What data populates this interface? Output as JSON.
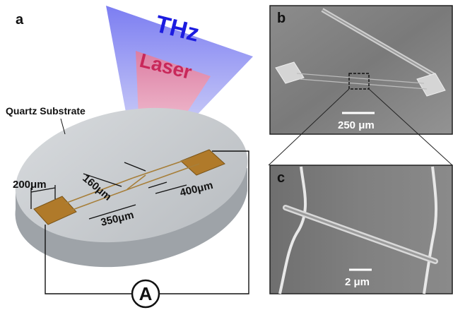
{
  "panels": {
    "a": {
      "letter": "a",
      "thz_label": "THz",
      "laser_label": "Laser",
      "substrate_label": "Quartz Substrate",
      "dim_pad_width": "200μm",
      "dim_gap": "160μm",
      "dim_length": "350μm",
      "dim_lead": "400μm",
      "ammeter_symbol": "A"
    },
    "b": {
      "letter": "b",
      "scale_label": "250 μm"
    },
    "c": {
      "letter": "c",
      "scale_label": "2 μm"
    }
  },
  "colors": {
    "thz_text": "#1c1ce0",
    "laser_text": "#c8285a",
    "pad_gold": "#b07a2a",
    "substrate": "#c9cdd1"
  }
}
